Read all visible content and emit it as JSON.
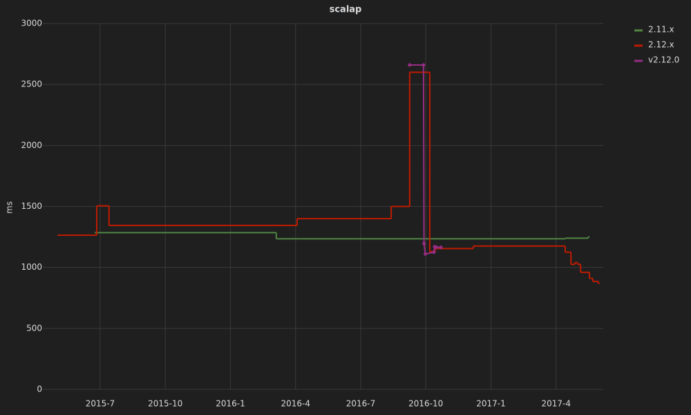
{
  "chart_data": {
    "type": "line",
    "title": "scalap",
    "y_label": "ms",
    "xlim": [
      2015.28,
      2017.431
    ],
    "ylim": [
      0,
      3000
    ],
    "xticks": [
      {
        "value": 2015.5,
        "label": "2015-7"
      },
      {
        "value": 2015.75,
        "label": "2015-10"
      },
      {
        "value": 2016.0,
        "label": "2016-1"
      },
      {
        "value": 2016.25,
        "label": "2016-4"
      },
      {
        "value": 2016.5,
        "label": "2016-7"
      },
      {
        "value": 2016.75,
        "label": "2016-10"
      },
      {
        "value": 2017.0,
        "label": "2017-1"
      },
      {
        "value": 2017.25,
        "label": "2017-4"
      }
    ],
    "yticks": [
      0,
      500,
      1000,
      1500,
      2000,
      2500,
      3000
    ],
    "grid": true,
    "legend": "right",
    "series": [
      {
        "name": "2.11.x",
        "color": "#508642",
        "step": true,
        "x": [
          2015.479,
          2016.176,
          2017.285,
          2017.373
        ],
        "values": [
          1285,
          1235,
          1240,
          1250
        ]
      },
      {
        "name": "2.12.x",
        "color": "#bf1b00",
        "step": true,
        "x": [
          2015.336,
          2015.487,
          2015.534,
          2016.256,
          2016.617,
          2016.688,
          2016.765,
          2016.786,
          2016.932,
          2017.285,
          2017.307,
          2017.322,
          2017.333,
          2017.344,
          2017.378,
          2017.391,
          2017.412
        ],
        "values": [
          1265,
          1505,
          1345,
          1400,
          1500,
          2600,
          1130,
          1155,
          1175,
          1125,
          1025,
          1040,
          1025,
          960,
          910,
          885,
          870
        ]
      },
      {
        "name": "v2.12.0",
        "color": "#962d82",
        "step": false,
        "x": [
          2016.688,
          2016.741,
          2016.743,
          2016.748,
          2016.781,
          2016.784,
          2016.792,
          2016.808
        ],
        "values": [
          2660,
          2660,
          1195,
          1110,
          1125,
          1170,
          1165,
          1165
        ]
      }
    ]
  }
}
